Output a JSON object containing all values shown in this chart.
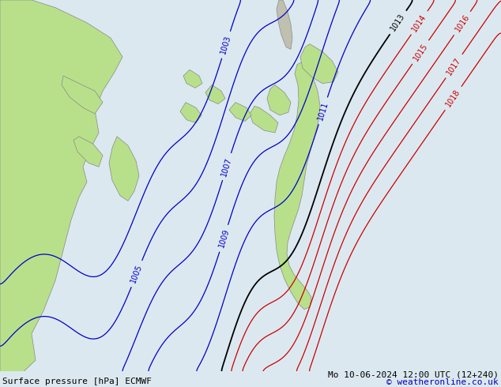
{
  "title_left": "Surface pressure [hPa] ECMWF",
  "title_right": "Mo 10-06-2024 12:00 UTC (12+240)",
  "copyright": "© weatheronline.co.uk",
  "bg_color": "#dce8f0",
  "land_color": "#b8e08a",
  "land_edge_color": "#888888",
  "font_size_footer": 8,
  "levels_red": [
    1014,
    1015,
    1016,
    1017,
    1018
  ],
  "levels_black": [
    1013
  ],
  "levels_blue": [
    1003,
    1005,
    1007,
    1009,
    1011
  ],
  "figw": 6.34,
  "figh": 4.9,
  "dpi": 100
}
